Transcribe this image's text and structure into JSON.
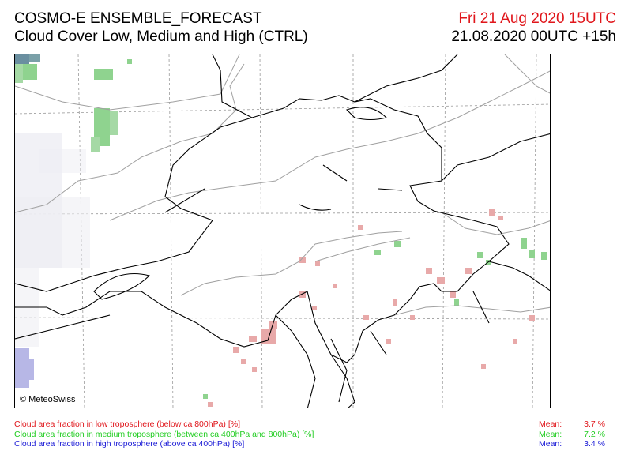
{
  "header": {
    "model": "COSMO-E ENSEMBLE_FORECAST",
    "product": "Cloud Cover Low, Medium and High (CTRL)",
    "valid_time": "Fri 21 Aug 2020 15UTC",
    "run_time": "21.08.2020 00UTC +15h"
  },
  "map": {
    "copyright": "© MeteoSwiss",
    "colors": {
      "low": "#e8a9a9",
      "medium": "#8fd38f",
      "high": "#b5b5e8",
      "border": "#000000",
      "grid": "#9a9a9a",
      "region": "#a0a0a0"
    }
  },
  "legend": [
    {
      "label": "Cloud area fraction in low troposphere (below ca 800hPa) [%]",
      "mean_label": "Mean:",
      "mean_value": "3.7 %",
      "color": "#e0161b"
    },
    {
      "label": "Cloud area fraction in medium troposphere (between ca 400hPa and 800hPa) [%]",
      "mean_label": "Mean:",
      "mean_value": "7.2 %",
      "color": "#1fcc1f"
    },
    {
      "label": "Cloud area fraction in high troposphere (above ca 400hPa) [%]",
      "mean_label": "Mean:",
      "mean_value": "3.4 %",
      "color": "#1a1ad6"
    }
  ]
}
